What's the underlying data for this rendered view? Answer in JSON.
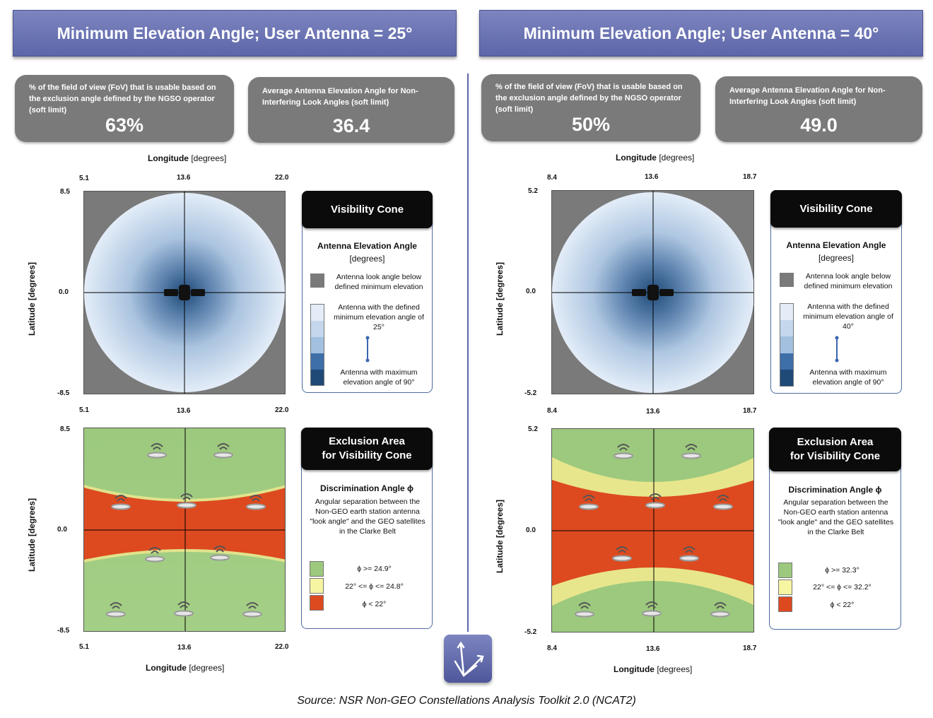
{
  "panels": [
    {
      "title": "Minimum Elevation Angle; User Antenna = 25°",
      "fov_label": "% of the field of view (FoV) that is usable based on the exclusion angle defined by the NGSO operator (soft limit)",
      "fov_value": "63%",
      "avg_label": "Average  Antenna  Elevation Angle for Non-Interfering Look Angles (soft limit)",
      "avg_value": "36.4",
      "top_axis": {
        "title_bold": "Longitude",
        "title_unit": "[degrees]",
        "ticks": [
          "5.1",
          "13.6",
          "22.0"
        ]
      },
      "bottom_axis": {
        "title_bold": "Longitude",
        "title_unit": "[degrees]",
        "ticks": [
          "5.1",
          "13.6",
          "22.0"
        ]
      },
      "lat_ticks": [
        "8.5",
        "0.0",
        "-8.5"
      ],
      "lat_label": "Latitude [degrees]",
      "visibility_legend": {
        "header": "Visibility Cone",
        "title": "Antenna Elevation Angle",
        "unit": "[degrees]",
        "below_min": "Antenna look angle below defined minimum elevation",
        "min_text": "Antenna with the defined minimum elevation angle of 25°",
        "max_text": "Antenna with maximum elevation angle of 90°"
      },
      "exclusion_legend": {
        "header_line1": "Exclusion Area",
        "header_line2": "for Visibility Cone",
        "title": "Discrimination Angle ϕ",
        "desc": "Angular separation between the Non-GEO earth station antenna \"look angle\" and the GEO satellites in the Clarke Belt",
        "items": [
          "ϕ >= 24.9°",
          "22° <= ϕ <=  24.8°",
          "ϕ <  22°"
        ]
      },
      "exclusion_band": "narrow"
    },
    {
      "title": "Minimum Elevation Angle; User Antenna = 40°",
      "fov_label": "% of the field of view (FoV) that is usable based on the exclusion angle defined by the NGSO operator (soft limit)",
      "fov_value": "50%",
      "avg_label": "Average  Antenna  Elevation Angle for Non-Interfering Look Angles (soft limit)",
      "avg_value": "49.0",
      "top_axis": {
        "title_bold": "Longitude",
        "title_unit": "[degrees]",
        "ticks": [
          "8.4",
          "13.6",
          "18.7"
        ]
      },
      "bottom_axis": {
        "title_bold": "Longitude",
        "title_unit": "[degrees]",
        "ticks": [
          "8.4",
          "13.6",
          "18.7"
        ]
      },
      "lat_ticks": [
        "5.2",
        "0.0",
        "-5.2"
      ],
      "lat_label": "Latitude [degrees]",
      "visibility_legend": {
        "header": "Visibility Cone",
        "title": "Antenna Elevation Angle",
        "unit": "[degrees]",
        "below_min": "Antenna look angle below defined minimum elevation",
        "min_text": "Antenna with the defined minimum elevation angle of 40°",
        "max_text": "Antenna with maximum elevation angle of 90°"
      },
      "exclusion_legend": {
        "header_line1": "Exclusion Area",
        "header_line2": "for Visibility Cone",
        "title": "Discrimination Angle ϕ",
        "desc": "Angular separation between the Non-GEO earth station antenna \"look angle\" and the GEO satellites in the Clarke Belt",
        "items": [
          "ϕ >= 32.3°",
          "22° <= ϕ <=  32.2°",
          "ϕ <  22°"
        ]
      },
      "exclusion_band": "wide"
    }
  ],
  "colors": {
    "banner": "#6770b3",
    "statbox": "#7a7a7a",
    "below_min": "#7a7a7a",
    "cone_min": "#dde8f4",
    "cone_max": "#1f4a78",
    "green": "#9cc97d",
    "yellow": "#f6f5a2",
    "red": "#dd4a1f"
  },
  "icons": [
    "visibility-cone-icon",
    "earth-station-icon",
    "satellite-icon",
    "app-logo-icon"
  ],
  "source": "Source: NSR Non-GEO Constellations Analysis Toolkit 2.0 (NCAT2)"
}
